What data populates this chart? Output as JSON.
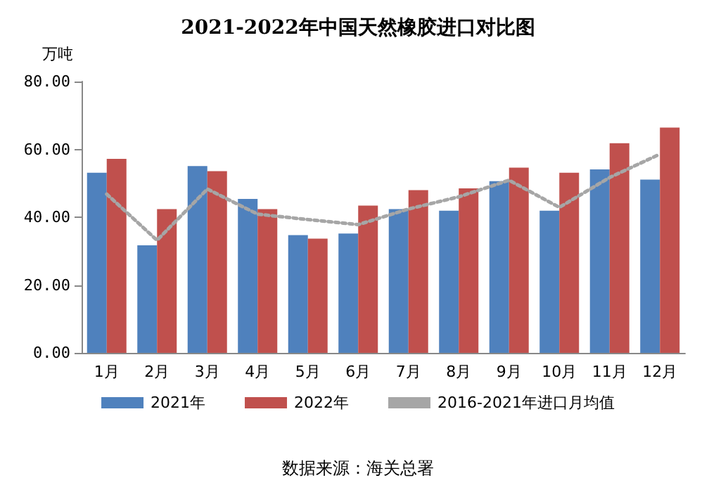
{
  "chart_data": {
    "type": "bar",
    "title": "2021-2022年中国天然橡胶进口对比图",
    "ylabel": "万吨",
    "categories": [
      "1月",
      "2月",
      "3月",
      "4月",
      "5月",
      "6月",
      "7月",
      "8月",
      "9月",
      "10月",
      "11月",
      "12月"
    ],
    "series": [
      {
        "name": "2021年",
        "color": "#4f81bd",
        "values": [
          53.1,
          31.7,
          55.1,
          45.4,
          34.7,
          35.2,
          42.4,
          41.9,
          50.6,
          41.9,
          54.1,
          51.1
        ]
      },
      {
        "name": "2022年",
        "color": "#c0504d",
        "values": [
          57.2,
          42.4,
          53.6,
          42.4,
          33.7,
          43.4,
          48.0,
          48.5,
          54.6,
          53.1,
          61.8,
          66.4
        ]
      },
      {
        "name": "2016-2021年进口月均值",
        "type": "line",
        "color": "#a6a6a6",
        "line_style": "dotted",
        "marker": "none",
        "values": [
          46.8,
          33.2,
          48.3,
          40.9,
          39.3,
          37.8,
          42.4,
          46.0,
          50.9,
          42.9,
          51.7,
          58.6
        ]
      }
    ],
    "ylim": [
      0,
      80
    ],
    "yticks": [
      {
        "value": 0,
        "label": "0.00"
      },
      {
        "value": 20,
        "label": "20.00"
      },
      {
        "value": 40,
        "label": "40.00"
      },
      {
        "value": 60,
        "label": "60.00"
      },
      {
        "value": 80,
        "label": "80.00"
      }
    ],
    "grid": false,
    "legend": "bottom",
    "annotations": [
      "数据来源：海关总署"
    ]
  }
}
